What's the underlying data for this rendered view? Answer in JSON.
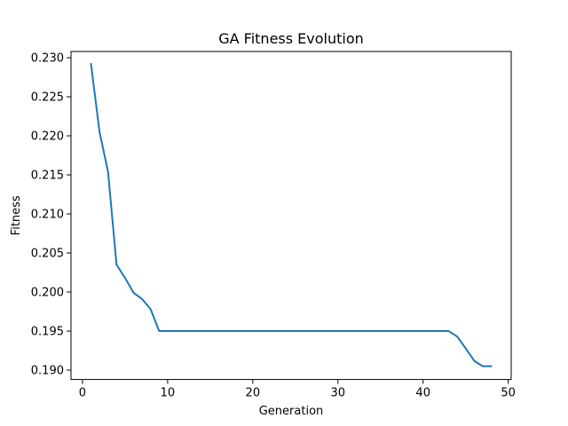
{
  "chart_data": {
    "type": "line",
    "title": "GA Fitness Evolution",
    "xlabel": "Generation",
    "ylabel": "Fitness",
    "xlim": [
      -1.35,
      50.35
    ],
    "ylim": [
      0.1888,
      0.2308
    ],
    "xticks": [
      0,
      10,
      20,
      30,
      40,
      50
    ],
    "yticks": [
      0.19,
      0.195,
      0.2,
      0.205,
      0.21,
      0.215,
      0.22,
      0.225,
      0.23
    ],
    "ytick_labels": [
      "0.190",
      "0.195",
      "0.200",
      "0.205",
      "0.210",
      "0.215",
      "0.220",
      "0.225",
      "0.230"
    ],
    "grid": false,
    "series": [
      {
        "color": "#1f77b4",
        "x": [
          1,
          2,
          3,
          4,
          5,
          6,
          7,
          8,
          9,
          10,
          11,
          12,
          13,
          14,
          15,
          16,
          17,
          18,
          19,
          20,
          21,
          22,
          23,
          24,
          25,
          26,
          27,
          28,
          29,
          30,
          31,
          32,
          33,
          34,
          35,
          36,
          37,
          38,
          39,
          40,
          41,
          42,
          43,
          44,
          45,
          46,
          47,
          48
        ],
        "values": [
          0.2292,
          0.2205,
          0.2154,
          0.2035,
          0.2018,
          0.1999,
          0.1991,
          0.1978,
          0.195,
          0.195,
          0.195,
          0.195,
          0.195,
          0.195,
          0.195,
          0.195,
          0.195,
          0.195,
          0.195,
          0.195,
          0.195,
          0.195,
          0.195,
          0.195,
          0.195,
          0.195,
          0.195,
          0.195,
          0.195,
          0.195,
          0.195,
          0.195,
          0.195,
          0.195,
          0.195,
          0.195,
          0.195,
          0.195,
          0.195,
          0.195,
          0.195,
          0.195,
          0.195,
          0.1943,
          0.1928,
          0.1912,
          0.1905,
          0.1905
        ]
      }
    ]
  }
}
